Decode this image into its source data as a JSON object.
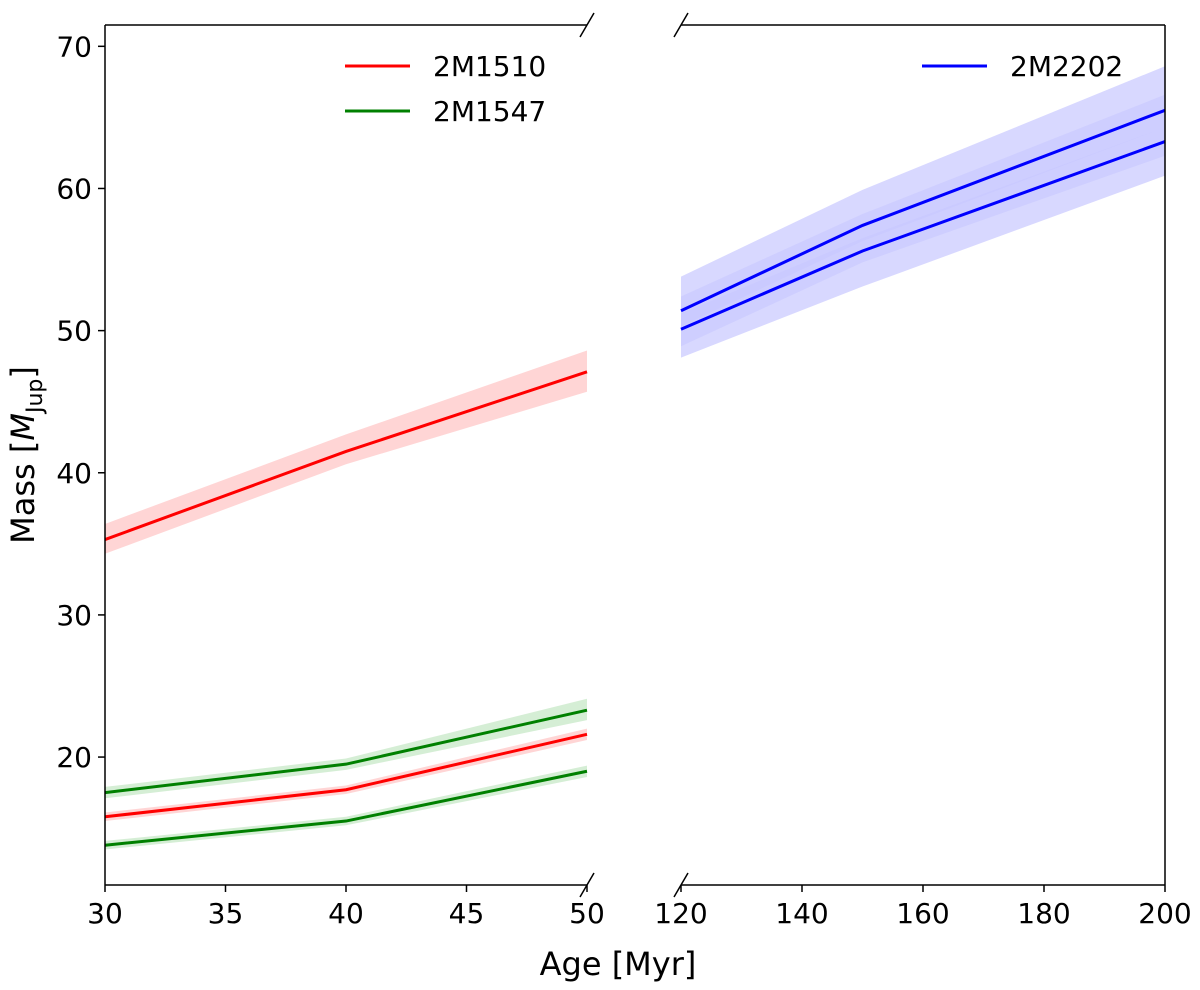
{
  "chart_data": {
    "type": "line",
    "title": "",
    "xlabel": "Age [Myr]",
    "ylabel": {
      "main": "Mass [",
      "italic": "M",
      "sub": "Jup",
      "close": "]"
    },
    "ylim": [
      11,
      71.5
    ],
    "yticks": [
      20,
      30,
      40,
      50,
      60,
      70
    ],
    "panels": [
      {
        "id": "left",
        "xlim": [
          30,
          50
        ],
        "xticks": [
          30,
          35,
          40,
          45,
          50
        ],
        "legend": "top-center",
        "series": [
          {
            "name": "2M1510",
            "show_in_legend": true,
            "color": "#ff0000",
            "band_color": "#ffb3b3",
            "x": [
              30,
              40,
              50
            ],
            "y": [
              35.3,
              41.5,
              47.1
            ],
            "inner_band": {
              "lower": [
                34.3,
                40.6,
                45.7
              ],
              "upper": [
                36.4,
                42.7,
                48.6
              ]
            }
          },
          {
            "name": "2M1510",
            "show_in_legend": false,
            "color": "#ff0000",
            "band_color": "#ffb3b3",
            "x": [
              30,
              40,
              50
            ],
            "y": [
              15.8,
              17.7,
              21.6
            ],
            "inner_band": {
              "lower": [
                15.5,
                17.4,
                21.2
              ],
              "upper": [
                16.1,
                18.0,
                22.0
              ]
            }
          },
          {
            "name": "2M1547",
            "show_in_legend": true,
            "color": "#008000",
            "band_color": "#b3e0b3",
            "x": [
              30,
              40,
              50
            ],
            "y": [
              17.5,
              19.5,
              23.3
            ],
            "inner_band": {
              "lower": [
                17.1,
                19.1,
                22.6
              ],
              "upper": [
                17.9,
                19.9,
                24.1
              ]
            }
          },
          {
            "name": "2M1547",
            "show_in_legend": false,
            "color": "#008000",
            "band_color": "#b3e0b3",
            "x": [
              30,
              40,
              50
            ],
            "y": [
              13.8,
              15.5,
              19.0
            ],
            "inner_band": {
              "lower": [
                13.5,
                15.2,
                18.6
              ],
              "upper": [
                14.1,
                15.8,
                19.4
              ]
            }
          }
        ]
      },
      {
        "id": "right",
        "xlim": [
          120,
          200
        ],
        "xticks": [
          120,
          140,
          160,
          180,
          200
        ],
        "legend": "top-right",
        "series": [
          {
            "name": "2M2202",
            "show_in_legend": true,
            "color": "#0000ff",
            "band_color": "#c7c7ff",
            "x": [
              120,
              150,
              200
            ],
            "y": [
              51.4,
              57.4,
              65.5
            ],
            "inner_band": {
              "lower": [
                50.3,
                56.3,
                64.3
              ],
              "upper": [
                52.4,
                58.2,
                66.6
              ]
            },
            "outer_band": {
              "lower": [
                48.1,
                53.1,
                60.9
              ],
              "upper": [
                53.8,
                59.9,
                68.6
              ]
            }
          },
          {
            "name": "2M2202",
            "show_in_legend": false,
            "color": "#0000ff",
            "band_color": "#c7c7ff",
            "x": [
              120,
              150,
              200
            ],
            "y": [
              50.1,
              55.6,
              63.3
            ],
            "inner_band": {
              "lower": [
                48.9,
                54.8,
                62.3
              ],
              "upper": [
                51.2,
                56.5,
                64.3
              ]
            }
          }
        ]
      }
    ]
  }
}
